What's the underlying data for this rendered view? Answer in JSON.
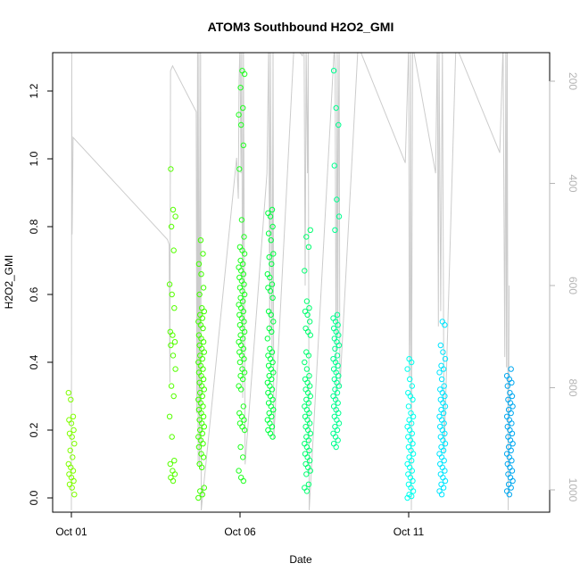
{
  "chart_data": {
    "type": "scatter",
    "title": "ATOM3 Southbound H2O2_GMI",
    "xlabel": "Date",
    "ylabel": "H2O2_GMI",
    "x_start_date": "2017-09-30",
    "xlim": [
      1.0,
      16.0
    ],
    "ylim": [
      0.0,
      1.3
    ],
    "y2lim_reversed": [
      130,
      1040
    ],
    "x_ticks": [
      {
        "x": 1,
        "label": "Oct 01"
      },
      {
        "x": 6,
        "label": "Oct 06"
      },
      {
        "x": 11,
        "label": "Oct 11"
      }
    ],
    "y_ticks": [
      0.0,
      0.2,
      0.4,
      0.6,
      0.8,
      1.0,
      1.2
    ],
    "y_tick_labels": [
      "0.0",
      "0.2",
      "0.4",
      "0.6",
      "0.8",
      "1.0",
      "1.2"
    ],
    "y2_ticks": [
      200,
      400,
      600,
      800,
      1000
    ],
    "y2_tick_labels": [
      "200",
      "400",
      "600",
      "800",
      "1000"
    ],
    "grid": false,
    "legend": "none",
    "colors": {
      "axis": "#000000",
      "secondary_axis": "#b4b4b4",
      "pressure_trace": "#cccccc"
    },
    "marker": "open-circle",
    "series": [
      {
        "x": 1.0,
        "color": "#7fff00",
        "values": [
          0.31,
          0.29,
          0.24,
          0.23,
          0.22,
          0.2,
          0.19,
          0.18,
          0.16,
          0.14,
          0.12,
          0.1,
          0.09,
          0.08,
          0.07,
          0.06,
          0.05,
          0.04,
          0.03,
          0.01
        ]
      },
      {
        "x": 4.0,
        "color": "#55ff00",
        "values": [
          0.97,
          0.85,
          0.83,
          0.8,
          0.73,
          0.63,
          0.6,
          0.56,
          0.49,
          0.48,
          0.46,
          0.45,
          0.42,
          0.38,
          0.33,
          0.3,
          0.24,
          0.18,
          0.11,
          0.1,
          0.08,
          0.07,
          0.06,
          0.05
        ]
      },
      {
        "x": 4.85,
        "color": "#40ff00",
        "values": [
          0.76,
          0.72,
          0.69,
          0.66,
          0.62,
          0.6,
          0.56,
          0.55,
          0.54,
          0.53,
          0.52,
          0.51,
          0.5,
          0.48,
          0.47,
          0.46,
          0.45,
          0.44,
          0.43,
          0.42,
          0.41,
          0.4,
          0.39,
          0.38,
          0.37,
          0.36,
          0.35,
          0.34,
          0.33,
          0.32,
          0.31,
          0.3,
          0.29,
          0.28,
          0.27,
          0.26,
          0.25,
          0.24,
          0.23,
          0.22,
          0.21,
          0.2,
          0.19,
          0.18,
          0.17,
          0.16,
          0.15,
          0.13,
          0.12,
          0.1,
          0.09,
          0.03,
          0.02,
          0.01,
          0.0
        ]
      },
      {
        "x": 6.05,
        "color": "#20ff20",
        "values": [
          1.26,
          1.25,
          1.21,
          1.15,
          1.13,
          1.1,
          1.04,
          0.97,
          0.82,
          0.77,
          0.74,
          0.73,
          0.72,
          0.7,
          0.69,
          0.68,
          0.67,
          0.66,
          0.65,
          0.64,
          0.63,
          0.62,
          0.61,
          0.6,
          0.59,
          0.58,
          0.57,
          0.56,
          0.55,
          0.54,
          0.53,
          0.52,
          0.51,
          0.5,
          0.49,
          0.48,
          0.47,
          0.46,
          0.45,
          0.44,
          0.43,
          0.42,
          0.41,
          0.4,
          0.38,
          0.37,
          0.36,
          0.35,
          0.33,
          0.32,
          0.27,
          0.25,
          0.24,
          0.23,
          0.22,
          0.21,
          0.2,
          0.15,
          0.12,
          0.08,
          0.06,
          0.05
        ]
      },
      {
        "x": 6.9,
        "color": "#00ff40",
        "values": [
          0.85,
          0.84,
          0.83,
          0.8,
          0.78,
          0.76,
          0.72,
          0.71,
          0.69,
          0.66,
          0.65,
          0.63,
          0.62,
          0.61,
          0.59,
          0.55,
          0.54,
          0.52,
          0.5,
          0.49,
          0.47,
          0.44,
          0.43,
          0.42,
          0.41,
          0.4,
          0.39,
          0.38,
          0.37,
          0.36,
          0.35,
          0.34,
          0.33,
          0.32,
          0.31,
          0.3,
          0.29,
          0.28,
          0.27,
          0.26,
          0.25,
          0.24,
          0.23,
          0.22,
          0.21,
          0.2,
          0.19,
          0.18
        ]
      },
      {
        "x": 8.0,
        "color": "#00ff70",
        "values": [
          0.79,
          0.77,
          0.74,
          0.67,
          0.58,
          0.56,
          0.55,
          0.54,
          0.52,
          0.5,
          0.49,
          0.48,
          0.43,
          0.42,
          0.4,
          0.38,
          0.36,
          0.35,
          0.34,
          0.33,
          0.32,
          0.31,
          0.3,
          0.29,
          0.28,
          0.27,
          0.26,
          0.25,
          0.24,
          0.23,
          0.22,
          0.21,
          0.2,
          0.19,
          0.18,
          0.17,
          0.16,
          0.15,
          0.14,
          0.13,
          0.12,
          0.11,
          0.1,
          0.09,
          0.08,
          0.07,
          0.04,
          0.03,
          0.02
        ]
      },
      {
        "x": 8.85,
        "color": "#00ff90",
        "values": [
          1.26,
          1.15,
          1.1,
          0.98,
          0.88,
          0.83,
          0.79,
          0.54,
          0.53,
          0.52,
          0.51,
          0.5,
          0.49,
          0.48,
          0.47,
          0.46,
          0.45,
          0.44,
          0.42,
          0.41,
          0.4,
          0.39,
          0.38,
          0.37,
          0.36,
          0.35,
          0.34,
          0.33,
          0.32,
          0.31,
          0.3,
          0.29,
          0.28,
          0.27,
          0.26,
          0.25,
          0.24,
          0.23,
          0.22,
          0.21,
          0.2,
          0.19,
          0.18,
          0.17,
          0.16,
          0.15
        ]
      },
      {
        "x": 11.05,
        "color": "#00ffee",
        "values": [
          0.41,
          0.4,
          0.38,
          0.35,
          0.33,
          0.31,
          0.3,
          0.29,
          0.27,
          0.25,
          0.24,
          0.23,
          0.22,
          0.21,
          0.2,
          0.19,
          0.18,
          0.17,
          0.16,
          0.15,
          0.14,
          0.13,
          0.12,
          0.11,
          0.1,
          0.09,
          0.08,
          0.07,
          0.06,
          0.05,
          0.04,
          0.03,
          0.02,
          0.01,
          0.005,
          0.0
        ]
      },
      {
        "x": 12.0,
        "color": "#00e5ff",
        "values": [
          0.52,
          0.51,
          0.45,
          0.43,
          0.41,
          0.39,
          0.38,
          0.37,
          0.35,
          0.33,
          0.32,
          0.31,
          0.3,
          0.29,
          0.28,
          0.27,
          0.26,
          0.25,
          0.24,
          0.23,
          0.22,
          0.21,
          0.2,
          0.19,
          0.18,
          0.17,
          0.16,
          0.15,
          0.14,
          0.13,
          0.12,
          0.11,
          0.1,
          0.09,
          0.08,
          0.07,
          0.06,
          0.05,
          0.04,
          0.03,
          0.02,
          0.01
        ]
      },
      {
        "x": 14.0,
        "color": "#00a8f0",
        "values": [
          0.38,
          0.36,
          0.35,
          0.34,
          0.33,
          0.31,
          0.3,
          0.29,
          0.28,
          0.27,
          0.26,
          0.25,
          0.24,
          0.23,
          0.22,
          0.21,
          0.2,
          0.19,
          0.18,
          0.17,
          0.16,
          0.15,
          0.14,
          0.13,
          0.12,
          0.11,
          0.1,
          0.09,
          0.08,
          0.07,
          0.06,
          0.05,
          0.04,
          0.03,
          0.02,
          0.01
        ]
      }
    ],
    "pressure_trace": [
      [
        1.0,
        1040
      ],
      [
        1.01,
        135
      ],
      [
        1.02,
        500
      ],
      [
        1.03,
        460
      ],
      [
        1.05,
        310
      ],
      [
        3.85,
        510
      ],
      [
        3.9,
        520
      ],
      [
        3.92,
        790
      ],
      [
        3.94,
        180
      ],
      [
        4.0,
        170
      ],
      [
        4.7,
        260
      ],
      [
        4.72,
        850
      ],
      [
        4.74,
        130
      ],
      [
        4.76,
        950
      ],
      [
        4.78,
        130
      ],
      [
        4.8,
        960
      ],
      [
        4.83,
        130
      ],
      [
        4.85,
        1040
      ],
      [
        5.9,
        350
      ],
      [
        5.95,
        430
      ],
      [
        5.97,
        200
      ],
      [
        6.0,
        130
      ],
      [
        6.03,
        380
      ],
      [
        6.05,
        130
      ],
      [
        6.08,
        820
      ],
      [
        6.1,
        130
      ],
      [
        6.15,
        950
      ],
      [
        6.8,
        380
      ],
      [
        6.85,
        130
      ],
      [
        6.88,
        700
      ],
      [
        6.9,
        130
      ],
      [
        6.95,
        740
      ],
      [
        6.98,
        130
      ],
      [
        7.0,
        900
      ],
      [
        7.6,
        130
      ],
      [
        7.85,
        150
      ],
      [
        7.9,
        130
      ],
      [
        7.93,
        600
      ],
      [
        7.96,
        130
      ],
      [
        8.0,
        380
      ],
      [
        8.02,
        130
      ],
      [
        8.05,
        1040
      ],
      [
        8.8,
        130
      ],
      [
        8.82,
        180
      ],
      [
        8.85,
        850
      ],
      [
        8.88,
        130
      ],
      [
        8.9,
        700
      ],
      [
        8.92,
        250
      ],
      [
        8.94,
        130
      ],
      [
        8.96,
        800
      ],
      [
        9.5,
        130
      ],
      [
        10.9,
        360
      ],
      [
        11.0,
        130
      ],
      [
        11.02,
        780
      ],
      [
        11.04,
        700
      ],
      [
        11.06,
        130
      ],
      [
        11.08,
        1040
      ],
      [
        11.1,
        490
      ],
      [
        11.12,
        130
      ],
      [
        11.8,
        380
      ],
      [
        11.85,
        130
      ],
      [
        11.88,
        680
      ],
      [
        11.9,
        130
      ],
      [
        11.95,
        650
      ],
      [
        12.0,
        130
      ],
      [
        12.05,
        930
      ],
      [
        12.4,
        130
      ],
      [
        13.7,
        340
      ],
      [
        13.8,
        130
      ],
      [
        13.85,
        740
      ],
      [
        13.88,
        130
      ],
      [
        13.9,
        760
      ],
      [
        13.92,
        130
      ],
      [
        13.95,
        1040
      ],
      [
        13.98,
        600
      ]
    ]
  }
}
